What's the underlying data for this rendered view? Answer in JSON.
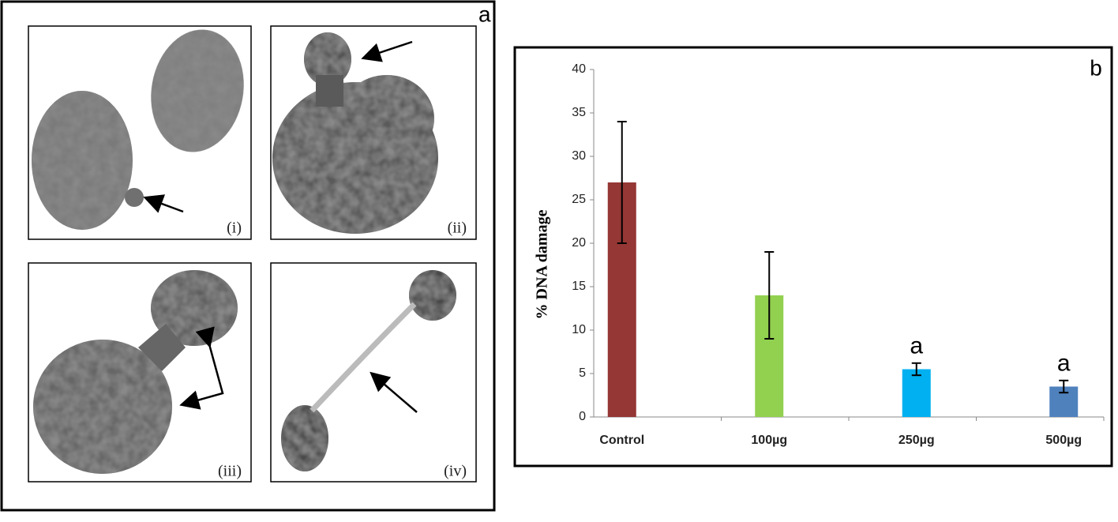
{
  "panel_a": {
    "label": "a",
    "image_labels": [
      "(i)",
      "(ii)",
      "(iii)",
      "(iv)"
    ]
  },
  "chart_data": {
    "type": "bar",
    "panel_label": "b",
    "y_label": "% DNA damage",
    "categories": [
      "Control",
      "100µg",
      "250µg",
      "500µg"
    ],
    "values": [
      27,
      14,
      5.5,
      3.5
    ],
    "errors": [
      7,
      5,
      0.7,
      0.7
    ],
    "colors": [
      "#953735",
      "#92d050",
      "#00b0f0",
      "#4f81bd"
    ],
    "value_annotations": [
      null,
      null,
      "a",
      "a"
    ],
    "ylim": [
      0,
      40
    ],
    "yticks": [
      0,
      5,
      10,
      15,
      20,
      25,
      30,
      35,
      40
    ],
    "grid": false
  }
}
